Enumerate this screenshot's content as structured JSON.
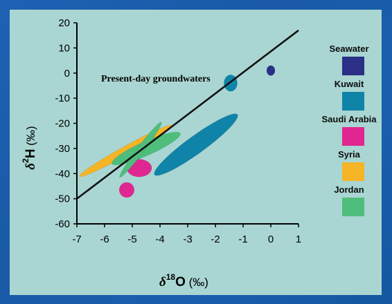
{
  "chart_data": {
    "type": "scatter",
    "xlabel": "δ18O (‰)",
    "ylabel": "δ2H (‰)",
    "xlabel_parts": {
      "delta": "δ",
      "sup": "18",
      "element": "O",
      "units": " (‰)"
    },
    "ylabel_parts": {
      "delta": "δ",
      "sup": "2",
      "element": "H",
      "units": " (‰)"
    },
    "xlim": [
      -7,
      1
    ],
    "ylim": [
      -60,
      20
    ],
    "xticks": [
      -7,
      -6,
      -5,
      -4,
      -3,
      -2,
      -1,
      0,
      1
    ],
    "yticks": [
      20,
      10,
      0,
      -10,
      -20,
      -30,
      -40,
      -50,
      -60
    ],
    "grid": false,
    "legend_position": "right",
    "line": {
      "label": "Present-day groundwaters",
      "x": [
        -7,
        1
      ],
      "y": [
        -50,
        17
      ],
      "color": "#111111"
    },
    "series": [
      {
        "name": "Seawater",
        "color": "#2b2f86",
        "regions": [
          {
            "center": [
              0,
              1
            ],
            "rx": 0.15,
            "ry": 2,
            "angle": 0
          }
        ]
      },
      {
        "name": "Kuwait",
        "color": "#0f84a8",
        "regions": [
          {
            "center": [
              -2.7,
              -28.5
            ],
            "rx": 1.85,
            "ry": 3.5,
            "angle": -36
          },
          {
            "center": [
              -1.45,
              -4
            ],
            "rx": 0.24,
            "ry": 3.3,
            "angle": 0
          }
        ]
      },
      {
        "name": "Saudi Arabia",
        "color": "#e02690",
        "regions": [
          {
            "center": [
              -4.75,
              -37.8
            ],
            "rx": 0.45,
            "ry": 3.5,
            "angle": 0
          },
          {
            "center": [
              -5.2,
              -46.5
            ],
            "rx": 0.27,
            "ry": 3.0,
            "angle": 0
          }
        ]
      },
      {
        "name": "Syria",
        "color": "#f6b427",
        "regions": [
          {
            "center": [
              -5.25,
              -31
            ],
            "rx": 1.9,
            "ry": 1.8,
            "angle": -29
          }
        ]
      },
      {
        "name": "Jordan",
        "color": "#4fbe7c",
        "regions": [
          {
            "center": [
              -4.5,
              -30
            ],
            "rx": 1.35,
            "ry": 2.8,
            "angle": -24
          },
          {
            "center": [
              -4.7,
              -30.5
            ],
            "rx": 1.25,
            "ry": 1.4,
            "angle": -53
          }
        ]
      }
    ]
  }
}
